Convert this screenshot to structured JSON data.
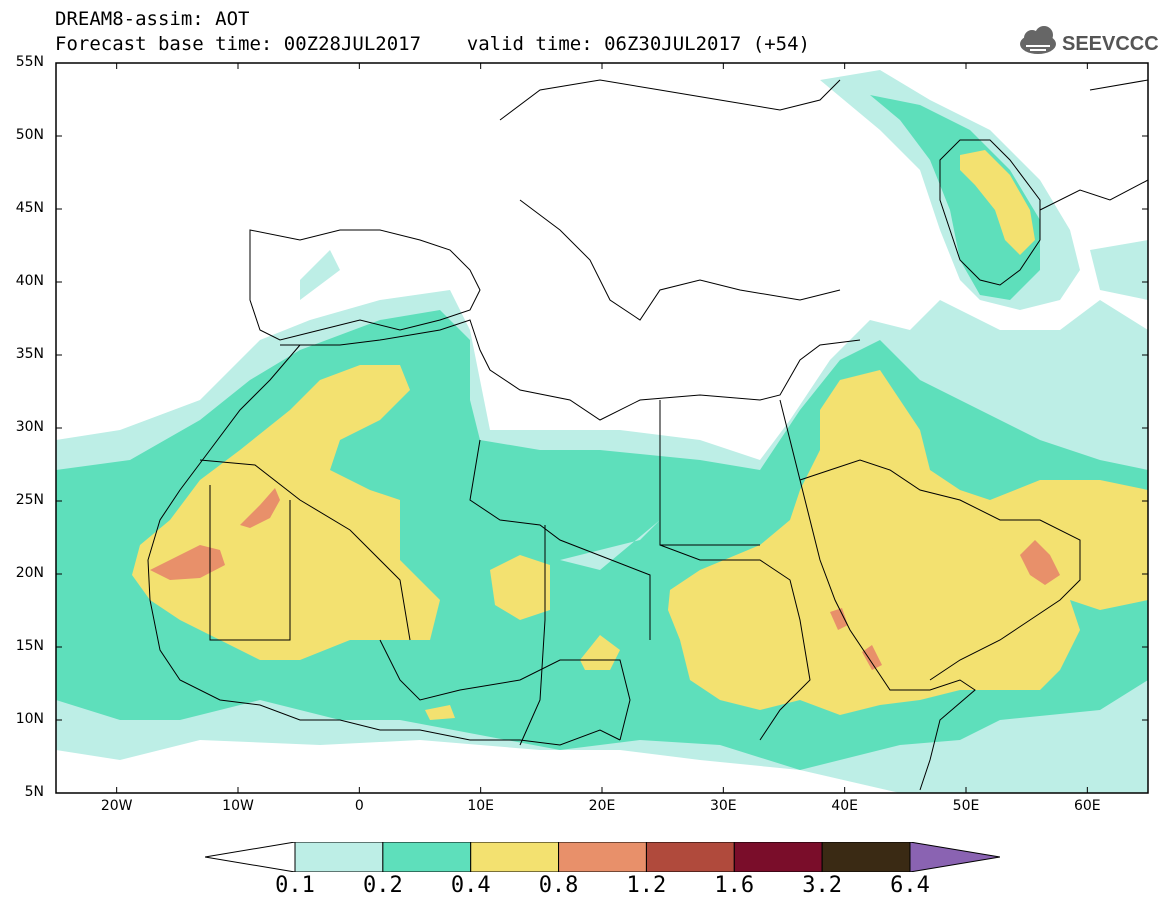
{
  "header": {
    "line1": "DREAM8-assim: AOT",
    "line2": "Forecast base time: 00Z28JUL2017    valid time: 06Z30JUL2017 (+54)"
  },
  "logo": {
    "text": "SEEVCCC",
    "icon": "cloud-icon"
  },
  "map": {
    "lon_range": [
      -25,
      65
    ],
    "lat_range": [
      5,
      55
    ],
    "lat_ticks": [
      "55N",
      "50N",
      "45N",
      "40N",
      "35N",
      "30N",
      "25N",
      "20N",
      "15N",
      "10N",
      "5N"
    ],
    "lon_ticks": [
      "20W",
      "10W",
      "0",
      "10E",
      "20E",
      "30E",
      "40E",
      "50E",
      "60E"
    ]
  },
  "colorbar": {
    "colors": [
      "#ffffff",
      "#bdeee6",
      "#5edfbb",
      "#f3e170",
      "#e8906a",
      "#b04a3c",
      "#7a0d2a",
      "#3a2a14",
      "#8a63b2"
    ],
    "labels": [
      "0.1",
      "0.2",
      "0.4",
      "0.8",
      "1.2",
      "1.6",
      "3.2",
      "6.4"
    ]
  }
}
